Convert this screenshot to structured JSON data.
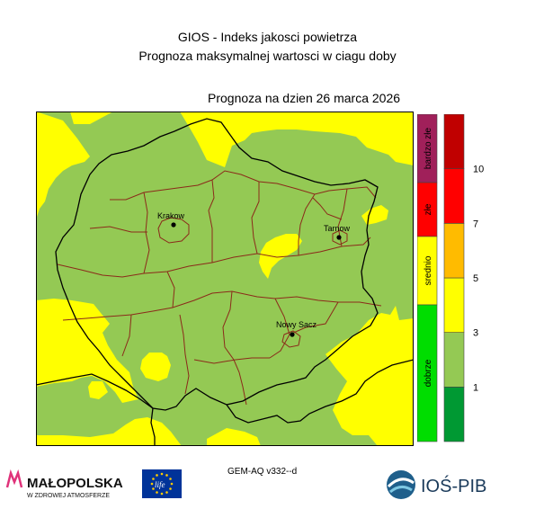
{
  "header": {
    "title": "GIOS - Indeks jakosci powietrza",
    "subtitle": "Prognoza maksymalnej wartosci w ciagu doby",
    "date_label": "Prognoza na dzien  26 marca 2026"
  },
  "map": {
    "cities": [
      {
        "name": "Krakow"
      },
      {
        "name": "Tarnow"
      },
      {
        "name": "Nowy Sacz"
      }
    ],
    "colors": {
      "yellow": "#ffff00",
      "green": "#94c954",
      "national_border": "#000000",
      "district_border": "#8b2a1a"
    }
  },
  "legend": {
    "categories": [
      {
        "label": "bardzo złe",
        "color": "#a0205a"
      },
      {
        "label": "złe",
        "color": "#ff0000"
      },
      {
        "label": "srednio",
        "color": "#ffff00"
      },
      {
        "label": "dobrze",
        "color": "#00dd00"
      }
    ],
    "scale": [
      {
        "color": "#009933"
      },
      {
        "color": "#94c954"
      },
      {
        "color": "#ffff00"
      },
      {
        "color": "#ffbb00"
      },
      {
        "color": "#ff0000"
      },
      {
        "color": "#c00000"
      }
    ],
    "ticks": [
      "1",
      "3",
      "5",
      "7",
      "10"
    ]
  },
  "footer": {
    "model": "GEM-AQ v332--d",
    "logo_malopolska": "MAŁOPOLSKA",
    "logo_malopolska_tag": "W ZDROWEJ ATMOSFERZE",
    "logo_eu_text": "life",
    "logo_ios": "IOŚ-PIB"
  }
}
